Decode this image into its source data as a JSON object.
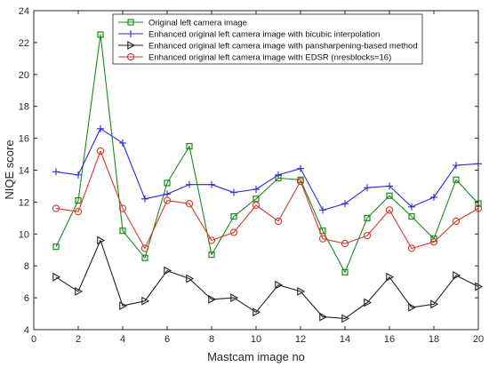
{
  "chart_data": {
    "type": "line",
    "title": "",
    "xlabel": "Mastcam image no",
    "ylabel": "NIQE score",
    "xlim": [
      0,
      20
    ],
    "ylim": [
      4,
      24
    ],
    "xticks": [
      0,
      2,
      4,
      6,
      8,
      10,
      12,
      14,
      16,
      18,
      20
    ],
    "yticks": [
      4,
      6,
      8,
      10,
      12,
      14,
      16,
      18,
      20,
      22,
      24
    ],
    "grid": false,
    "legend_position": "top-center",
    "x": [
      1,
      2,
      3,
      4,
      5,
      6,
      7,
      8,
      9,
      10,
      11,
      12,
      13,
      14,
      15,
      16,
      17,
      18,
      19,
      20
    ],
    "series": [
      {
        "name": "Original left camera image",
        "color": "#1b8a1b",
        "marker": "square",
        "values": [
          9.2,
          12.1,
          22.5,
          10.2,
          8.5,
          13.2,
          15.5,
          8.7,
          11.1,
          12.2,
          13.5,
          13.4,
          10.2,
          7.6,
          11.0,
          12.4,
          11.1,
          9.7,
          13.4,
          11.9
        ]
      },
      {
        "name": "Enhanced original left camera image with bicubic interpolation",
        "color": "#2b2bd6",
        "marker": "plus",
        "values": [
          13.9,
          13.7,
          16.6,
          15.7,
          12.2,
          12.5,
          13.1,
          13.1,
          12.6,
          12.8,
          13.7,
          14.1,
          11.5,
          11.9,
          12.9,
          13.0,
          11.7,
          12.3,
          14.3,
          14.4
        ]
      },
      {
        "name": "Enhanced original left camera image with pansharpening-based method",
        "color": "#222222",
        "marker": "triangle-right",
        "values": [
          7.3,
          6.4,
          9.6,
          5.5,
          5.8,
          7.7,
          7.2,
          5.9,
          6.0,
          5.1,
          6.8,
          6.4,
          4.8,
          4.7,
          5.7,
          7.3,
          5.4,
          5.6,
          7.4,
          6.7
        ]
      },
      {
        "name": "Enhanced original left camera image with EDSR (nresblocks=16)",
        "color": "#d33a2c",
        "marker": "circle",
        "values": [
          11.6,
          11.4,
          15.2,
          11.6,
          9.1,
          12.1,
          11.9,
          9.6,
          10.1,
          11.8,
          10.8,
          13.3,
          9.7,
          9.4,
          9.9,
          11.5,
          9.1,
          9.5,
          10.8,
          11.6
        ]
      }
    ]
  }
}
